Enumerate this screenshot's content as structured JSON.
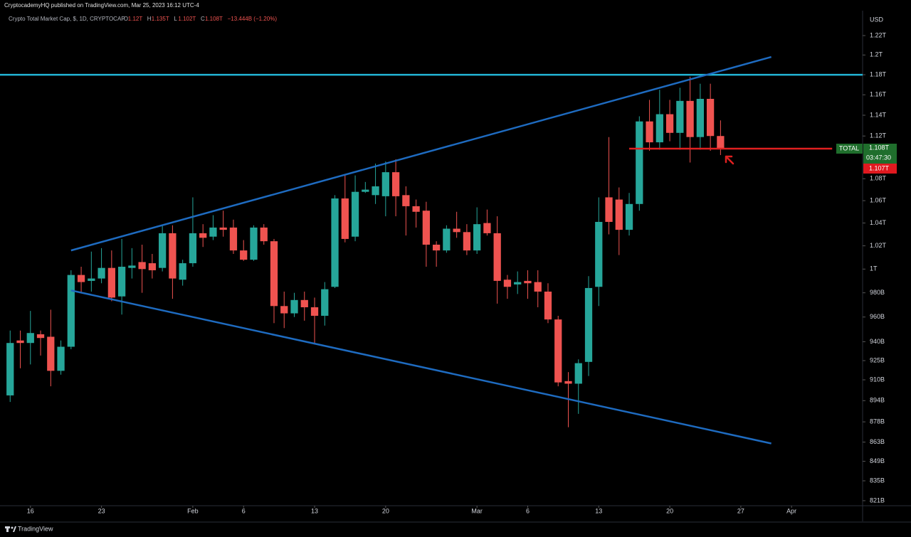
{
  "header": {
    "publisher": "CryptocademyHQ published on TradingView.com, Mar 25, 2023 16:12 UTC-4",
    "symbol": "Crypto Total Market Cap, $, 1D, CRYPTOCAP",
    "ohlc": [
      {
        "key": "O",
        "value": "1.12T"
      },
      {
        "key": "H",
        "value": "1.135T"
      },
      {
        "key": "L",
        "value": "1.102T"
      },
      {
        "key": "C",
        "value": "1.108T"
      }
    ],
    "change": "−13.444B (−1.20%)"
  },
  "chart_data": {
    "type": "candlestick",
    "axis_unit": "USD",
    "log_scale": true,
    "grid": false,
    "up_color": "#26a69a",
    "down_color": "#ef5350",
    "x": [
      "2023-01-14",
      "2023-01-15",
      "2023-01-16",
      "2023-01-17",
      "2023-01-18",
      "2023-01-19",
      "2023-01-20",
      "2023-01-21",
      "2023-01-22",
      "2023-01-23",
      "2023-01-24",
      "2023-01-25",
      "2023-01-26",
      "2023-01-27",
      "2023-01-28",
      "2023-01-29",
      "2023-01-30",
      "2023-01-31",
      "2023-02-01",
      "2023-02-02",
      "2023-02-03",
      "2023-02-04",
      "2023-02-05",
      "2023-02-06",
      "2023-02-07",
      "2023-02-08",
      "2023-02-09",
      "2023-02-10",
      "2023-02-11",
      "2023-02-12",
      "2023-02-13",
      "2023-02-14",
      "2023-02-15",
      "2023-02-16",
      "2023-02-17",
      "2023-02-18",
      "2023-02-19",
      "2023-02-20",
      "2023-02-21",
      "2023-02-22",
      "2023-02-23",
      "2023-02-24",
      "2023-02-25",
      "2023-02-26",
      "2023-02-27",
      "2023-02-28",
      "2023-03-01",
      "2023-03-02",
      "2023-03-03",
      "2023-03-04",
      "2023-03-05",
      "2023-03-06",
      "2023-03-07",
      "2023-03-08",
      "2023-03-09",
      "2023-03-10",
      "2023-03-11",
      "2023-03-12",
      "2023-03-13",
      "2023-03-14",
      "2023-03-15",
      "2023-03-16",
      "2023-03-17",
      "2023-03-18",
      "2023-03-19",
      "2023-03-20",
      "2023-03-21",
      "2023-03-22",
      "2023-03-23",
      "2023-03-24",
      "2023-03-25"
    ],
    "open": [
      898,
      941,
      939,
      946,
      944,
      917,
      936,
      995,
      990,
      992,
      1001,
      977,
      1001,
      1006,
      1005,
      1001,
      1031,
      991,
      1005,
      1031,
      1028,
      1036,
      1036,
      1016,
      1008,
      1036,
      1024,
      969,
      963,
      974,
      968,
      961,
      985,
      1062,
      1028,
      1068,
      1065,
      1064,
      1086,
      1065,
      1055,
      1051,
      1021,
      1016,
      1035,
      1032,
      1016,
      1040,
      1031,
      991,
      987,
      990,
      989,
      981,
      958,
      909,
      907,
      924,
      985,
      1063,
      1061,
      1034,
      1057,
      1134,
      1114,
      1141,
      1123,
      1154,
      1119,
      1156,
      1120
    ],
    "high": [
      949,
      949,
      965,
      949,
      966,
      941,
      999,
      1002,
      1015,
      1018,
      1016,
      1026,
      1018,
      1021,
      1013,
      1038,
      1038,
      1008,
      1063,
      1039,
      1047,
      1051,
      1043,
      1025,
      1038,
      1039,
      1026,
      981,
      980,
      981,
      976,
      989,
      1065,
      1084,
      1083,
      1077,
      1094,
      1096,
      1098,
      1073,
      1061,
      1059,
      1024,
      1038,
      1050,
      1039,
      1054,
      1052,
      1046,
      995,
      998,
      999,
      999,
      988,
      961,
      916,
      926,
      994,
      1063,
      1119,
      1072,
      1067,
      1139,
      1155,
      1165,
      1155,
      1167,
      1178,
      1171,
      1171,
      1135
    ],
    "low": [
      893,
      919,
      922,
      929,
      905,
      914,
      934,
      980,
      981,
      988,
      973,
      962,
      992,
      980,
      992,
      998,
      975,
      986,
      1002,
      1019,
      1025,
      1028,
      1013,
      1007,
      1007,
      1021,
      955,
      951,
      960,
      957,
      939,
      953,
      984,
      1023,
      1024,
      1067,
      1057,
      1046,
      1046,
      1029,
      1036,
      1002,
      1002,
      1014,
      1027,
      1012,
      1013,
      1029,
      971,
      975,
      979,
      975,
      968,
      955,
      905,
      874,
      884,
      913,
      969,
      1030,
      1012,
      1029,
      1051,
      1106,
      1107,
      1115,
      1107,
      1095,
      1107,
      1106,
      1102
    ],
    "close": [
      939,
      939,
      947,
      943,
      917,
      936,
      995,
      989,
      992,
      1001,
      976,
      1002,
      1003,
      1000,
      999,
      1031,
      992,
      1005,
      1031,
      1027,
      1036,
      1034,
      1016,
      1008,
      1036,
      1024,
      969,
      963,
      974,
      968,
      961,
      983,
      1062,
      1026,
      1068,
      1070,
      1073,
      1086,
      1064,
      1055,
      1050,
      1021,
      1016,
      1035,
      1032,
      1016,
      1039,
      1031,
      990,
      985,
      989,
      988,
      981,
      958,
      908,
      907,
      923,
      984,
      1041,
      1041,
      1034,
      1057,
      1134,
      1114,
      1141,
      1123,
      1154,
      1119,
      1156,
      1120,
      1108
    ],
    "xlim": [
      "2023-01-13",
      "2023-04-08"
    ],
    "xticks": [
      {
        "value": "2023-01-16",
        "label": "16"
      },
      {
        "value": "2023-01-23",
        "label": "23"
      },
      {
        "value": "2023-02-01",
        "label": "Feb"
      },
      {
        "value": "2023-02-06",
        "label": "6"
      },
      {
        "value": "2023-02-13",
        "label": "13"
      },
      {
        "value": "2023-02-20",
        "label": "20"
      },
      {
        "value": "2023-03-01",
        "label": "Mar"
      },
      {
        "value": "2023-03-06",
        "label": "6"
      },
      {
        "value": "2023-03-13",
        "label": "13"
      },
      {
        "value": "2023-03-20",
        "label": "20"
      },
      {
        "value": "2023-03-27",
        "label": "27"
      },
      {
        "value": "2023-04-01",
        "label": "Apr"
      }
    ],
    "ylim": [
      816.5,
      1243.9
    ],
    "yticks": [
      {
        "value": 1220,
        "label": "1.22T"
      },
      {
        "value": 1200,
        "label": "1.2T"
      },
      {
        "value": 1180,
        "label": "1.18T"
      },
      {
        "value": 1160,
        "label": "1.16T"
      },
      {
        "value": 1140,
        "label": "1.14T"
      },
      {
        "value": 1120,
        "label": "1.12T"
      },
      {
        "value": 1080,
        "label": "1.08T"
      },
      {
        "value": 1060,
        "label": "1.06T"
      },
      {
        "value": 1040,
        "label": "1.04T"
      },
      {
        "value": 1020,
        "label": "1.02T"
      },
      {
        "value": 1000,
        "label": "1T"
      },
      {
        "value": 980,
        "label": "980B"
      },
      {
        "value": 960,
        "label": "960B"
      },
      {
        "value": 940,
        "label": "940B"
      },
      {
        "value": 925,
        "label": "925B"
      },
      {
        "value": 910,
        "label": "910B"
      },
      {
        "value": 894,
        "label": "894B"
      },
      {
        "value": 878,
        "label": "878B"
      },
      {
        "value": 863,
        "label": "863B"
      },
      {
        "value": 849,
        "label": "849B"
      },
      {
        "value": 835,
        "label": "835B"
      },
      {
        "value": 821,
        "label": "821B"
      }
    ],
    "lines": [
      {
        "color": "#22b5d6",
        "x": [
          "2023-01-13",
          "2023-04-08"
        ],
        "y": [
          1180,
          1180
        ]
      },
      {
        "color": "#1e6bc0",
        "x": [
          "2023-01-20",
          "2023-03-30"
        ],
        "y": [
          1016,
          1198
        ]
      },
      {
        "color": "#1e6bc0",
        "x": [
          "2023-01-20",
          "2023-03-30"
        ],
        "y": [
          982,
          862
        ]
      },
      {
        "color": "#e02020",
        "x": [
          "2023-03-16",
          "2023-04-05"
        ],
        "y": [
          1108,
          1108
        ]
      }
    ]
  },
  "price_tags": {
    "symbol": "TOTAL",
    "last": "1.108T",
    "countdown": "03:47:30",
    "bid": "1.107T"
  },
  "footer": {
    "brand": "TradingView"
  }
}
